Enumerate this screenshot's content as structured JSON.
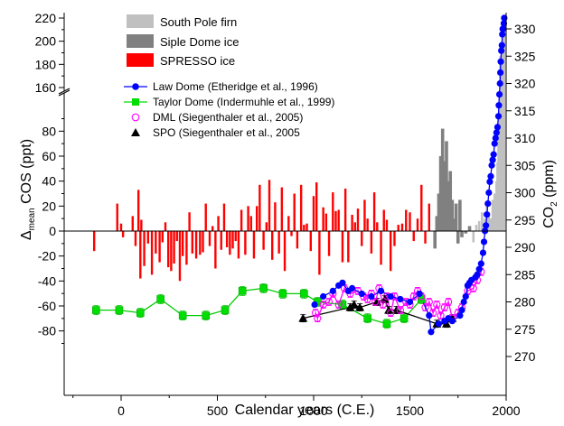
{
  "chart_data": {
    "type": "composite",
    "xlabel": "Calendar years (C.E.)",
    "xlim": [
      -250,
      2000
    ],
    "xticks": [
      "0",
      "500",
      "1000",
      "1500",
      "2000"
    ],
    "ylabel_left": {
      "pre": "Δ",
      "sub": "mean",
      "post": " COS (ppt)"
    },
    "ylabel_right": {
      "pre": "CO",
      "sub": "2",
      "post": " (ppm)"
    },
    "left_upper_ticks": [
      "160",
      "180",
      "200",
      "220"
    ],
    "left_lower_ticks": [
      "-80",
      "-60",
      "-40",
      "-20",
      "0",
      "20",
      "40",
      "60",
      "80"
    ],
    "right_ticks": [
      "270",
      "275",
      "280",
      "285",
      "290",
      "295",
      "300",
      "305",
      "310",
      "315",
      "320",
      "325",
      "330"
    ],
    "ylim_cos_lower": [
      -90,
      90
    ],
    "ylim_cos_upper": [
      150,
      220
    ],
    "ylim_co2": [
      266,
      333
    ],
    "legend_bars": [
      {
        "label": "South Pole firn",
        "color": "#c0c0c0"
      },
      {
        "label": "Siple Dome ice",
        "color": "#808080"
      },
      {
        "label": "SPRESSO ice",
        "color": "#ff0000"
      }
    ],
    "legend_series": [
      {
        "label": "Law Dome (Etheridge et al., 1996)",
        "color": "#0000ff",
        "marker": "filled-circle"
      },
      {
        "label": "Taylor Dome (Indermuhle et al., 1999)",
        "color": "#00dd00",
        "marker": "filled-square"
      },
      {
        "label": "DML (Siegenthaler et al., 2005)",
        "color": "#ff00ff",
        "marker": "open-circle"
      },
      {
        "label": "SPO (Siegenthaler et al., 2005",
        "color": "#000000",
        "marker": "filled-triangle"
      }
    ],
    "spresso_bars": {
      "x": [
        -140,
        -20,
        0,
        10,
        60,
        75,
        90,
        100,
        105,
        120,
        140,
        160,
        180,
        200,
        215,
        230,
        245,
        260,
        275,
        290,
        305,
        320,
        340,
        355,
        370,
        390,
        410,
        425,
        440,
        460,
        475,
        490,
        505,
        520,
        535,
        550,
        565,
        580,
        595,
        610,
        625,
        645,
        660,
        675,
        690,
        705,
        720,
        740,
        755,
        770,
        785,
        800,
        820,
        835,
        850,
        870,
        885,
        900,
        915,
        935,
        950,
        965,
        985,
        1000,
        1015,
        1030,
        1050,
        1065,
        1080,
        1100,
        1115,
        1130,
        1150,
        1165,
        1180,
        1200,
        1215,
        1230,
        1250,
        1265,
        1280,
        1300,
        1315,
        1330,
        1350,
        1365,
        1380,
        1400,
        1420,
        1440,
        1460,
        1480,
        1500,
        1520,
        1540,
        1560,
        1580,
        1600
      ],
      "values": [
        -16,
        22,
        6,
        -5,
        12,
        -12,
        33,
        -38,
        9,
        -28,
        -10,
        -35,
        -18,
        -25,
        -9,
        7,
        -29,
        -32,
        -26,
        -8,
        -40,
        -20,
        -27,
        15,
        -18,
        -22,
        -19,
        -17,
        22,
        -12,
        4,
        -30,
        12,
        -15,
        22,
        -13,
        -19,
        -14,
        -8,
        -22,
        17,
        -19,
        20,
        12,
        -22,
        20,
        37,
        -15,
        7,
        41,
        -23,
        23,
        -18,
        35,
        -32,
        12,
        -4,
        30,
        -14,
        37,
        5,
        6,
        -16,
        28,
        39,
        -35,
        19,
        14,
        -20,
        31,
        16,
        17,
        -25,
        34,
        -25,
        13,
        7,
        18,
        -12,
        25,
        10,
        -18,
        31,
        7,
        -27,
        17,
        9,
        -32,
        -12,
        5,
        6,
        17,
        15,
        -8,
        10,
        37,
        -10,
        22
      ]
    },
    "siple_bars": {
      "x": [
        1630,
        1640,
        1650,
        1660,
        1670,
        1680,
        1690,
        1700,
        1710,
        1720,
        1730,
        1740,
        1750,
        1760,
        1770,
        1790,
        1810
      ],
      "values": [
        -14,
        12,
        30,
        60,
        82,
        56,
        72,
        40,
        48,
        25,
        10,
        22,
        -10,
        25,
        -5,
        -2,
        4
      ]
    },
    "southpole_bars": {
      "x": [
        1830,
        1845,
        1860,
        1875,
        1890,
        1900,
        1910,
        1920,
        1930,
        1940,
        1950,
        1955,
        1960,
        1965,
        1970,
        1975,
        1980,
        1985,
        1990
      ],
      "values": [
        -9,
        5,
        8,
        15,
        10,
        20,
        12,
        10,
        25,
        30,
        40,
        55,
        80,
        100,
        140,
        170,
        190,
        205,
        212
      ]
    },
    "law_dome": {
      "x": [
        1005,
        1050,
        1100,
        1130,
        1150,
        1180,
        1200,
        1250,
        1300,
        1350,
        1400,
        1450,
        1500,
        1550,
        1600,
        1610,
        1650,
        1680,
        1700,
        1720,
        1760,
        1770,
        1780,
        1790,
        1800,
        1810,
        1820,
        1840,
        1850,
        1860,
        1870,
        1880,
        1885,
        1890,
        1895,
        1900,
        1905,
        1910,
        1915,
        1920,
        1925,
        1930,
        1935,
        1940,
        1945,
        1950,
        1955,
        1960,
        1962,
        1965,
        1968,
        1970,
        1972,
        1975,
        1978,
        1980,
        1982,
        1985,
        1988,
        1990
      ],
      "values": [
        279.5,
        281,
        282,
        283,
        283.5,
        282,
        282.5,
        281.5,
        281,
        282,
        281,
        280.5,
        280,
        281.5,
        277.5,
        274.5,
        276,
        276.5,
        277,
        276.5,
        277.5,
        278.5,
        280,
        281,
        283,
        283.5,
        284,
        284.5,
        285,
        286,
        287,
        289,
        291,
        293,
        294,
        296,
        298,
        300,
        302,
        303,
        305,
        306,
        307,
        309,
        310,
        311,
        312,
        314,
        316,
        318,
        320,
        322,
        324,
        326,
        327,
        329,
        330,
        330,
        331,
        332
      ]
    },
    "taylor_dome": {
      "x": [
        -130,
        -10,
        100,
        205,
        320,
        440,
        540,
        630,
        740,
        840,
        950,
        1020,
        1150,
        1280,
        1380,
        1470,
        1560
      ],
      "values": [
        278.5,
        278.5,
        278,
        280.5,
        277.5,
        277.5,
        278.5,
        282,
        282.5,
        281.5,
        281.5,
        280,
        279.5,
        277,
        276,
        277,
        280.5
      ]
    },
    "dml": {
      "x": [
        1010,
        1020,
        1050,
        1080,
        1100,
        1130,
        1160,
        1190,
        1230,
        1260,
        1280,
        1300,
        1320,
        1340,
        1360,
        1380,
        1400,
        1420,
        1450,
        1480,
        1500,
        1520,
        1540,
        1560,
        1580,
        1600,
        1620,
        1640,
        1660,
        1680,
        1700,
        1720,
        1750,
        1770,
        1800,
        1830,
        1850,
        1870
      ],
      "values": [
        278,
        277,
        279.5,
        280,
        281.5,
        279.5,
        282.5,
        281.5,
        282,
        281,
        280.5,
        281.5,
        280,
        282.5,
        279.5,
        281,
        278,
        281,
        278.5,
        280,
        279.5,
        281,
        282,
        281,
        279,
        280,
        278,
        279.5,
        277.5,
        279,
        280,
        277,
        278,
        279,
        282,
        282.5,
        284,
        285.5
      ]
    },
    "spo": {
      "x": [
        945,
        1190,
        1210,
        1240,
        1330,
        1370,
        1390,
        1430,
        1640,
        1690,
        1720
      ],
      "values": [
        277,
        279,
        279.5,
        279,
        280,
        280.5,
        278.5,
        278.5,
        276,
        276,
        277
      ]
    }
  }
}
